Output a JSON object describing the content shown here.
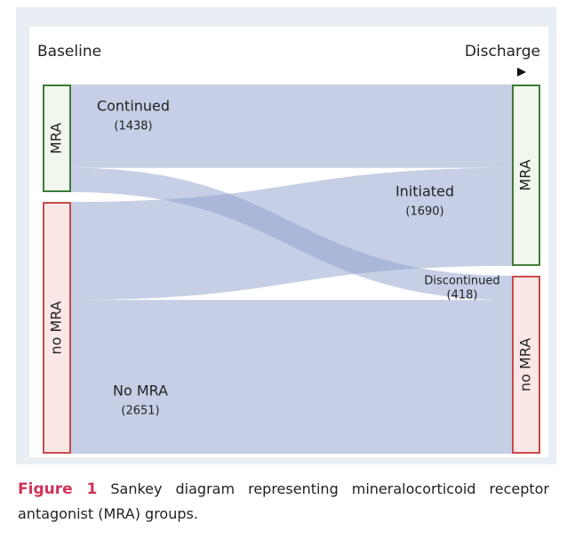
{
  "chart_data": {
    "type": "sankey",
    "stages": [
      "Baseline",
      "Discharge"
    ],
    "nodes": [
      "MRA",
      "no MRA"
    ],
    "node_colors": [
      "#3d7b35",
      "#c94a4a"
    ],
    "node_fills": [
      "#f1f7ec",
      "#fbe7e5"
    ],
    "flow_color": "#8d9fcb",
    "flows": {
      "names": [
        "Continued",
        "Discontinued",
        "Initiated",
        "No MRA"
      ],
      "source": [
        "MRA",
        "MRA",
        "no MRA",
        "no MRA"
      ],
      "target": [
        "MRA",
        "no MRA",
        "MRA",
        "no MRA"
      ],
      "values": [
        1438,
        418,
        1690,
        2651
      ],
      "value_labels": [
        "(1438)",
        "(418)",
        "(1690)",
        "(2651)"
      ]
    }
  },
  "caption": {
    "label": "Figure 1",
    "text": "Sankey diagram representing mineralocorticoid receptor antagonist (MRA) groups."
  }
}
